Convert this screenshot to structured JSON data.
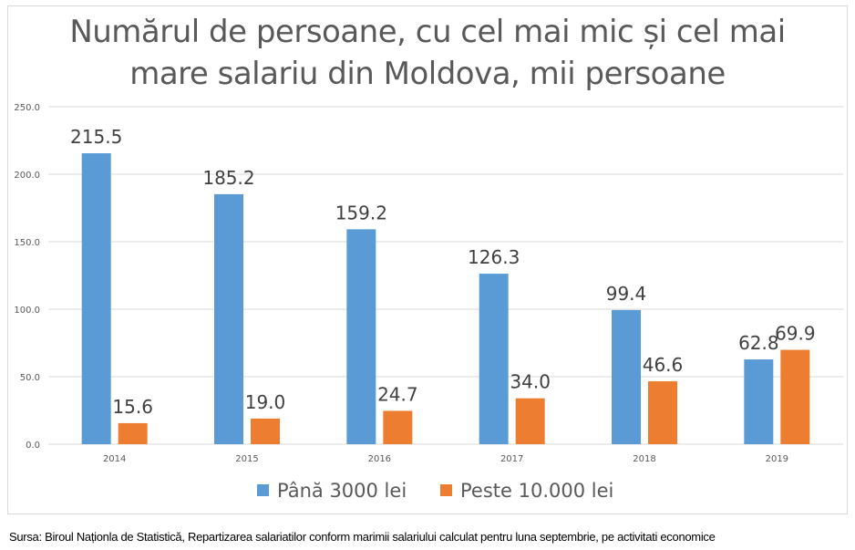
{
  "chart_data": {
    "type": "bar",
    "title": "Numărul de persoane, cu cel mai mic și cel mai mare salariu din Moldova, mii persoane",
    "title_lines": [
      "Numărul de persoane, cu cel mai mic și cel mai",
      "mare salariu din Moldova, mii persoane"
    ],
    "categories": [
      "2014",
      "2015",
      "2016",
      "2017",
      "2018",
      "2019"
    ],
    "series": [
      {
        "name": "Până 3000 lei",
        "color": "#5b9bd5",
        "values": [
          215.5,
          185.2,
          159.2,
          126.3,
          99.4,
          62.8
        ],
        "labels": [
          "215.5",
          "185.2",
          "159.2",
          "126.3",
          "99.4",
          "62.8"
        ]
      },
      {
        "name": "Peste 10.000 lei",
        "color": "#ed7d31",
        "values": [
          15.6,
          19.0,
          24.7,
          34.0,
          46.6,
          69.9
        ],
        "labels": [
          "15.6",
          "19.0",
          "24.7",
          "34.0",
          "46.6",
          "69.9"
        ]
      }
    ],
    "ylim": [
      0,
      250
    ],
    "yticks": [
      "0.0",
      "50.0",
      "100.0",
      "150.0",
      "200.0",
      "250.0"
    ],
    "grid": true,
    "legend": "bottom",
    "xlabel": "",
    "ylabel": ""
  },
  "source": "Sursa: Biroul Naționla de Statistică, Repartizarea salariatilor conform marimii salariului calculat pentru luna septembrie, pe activitati economice"
}
